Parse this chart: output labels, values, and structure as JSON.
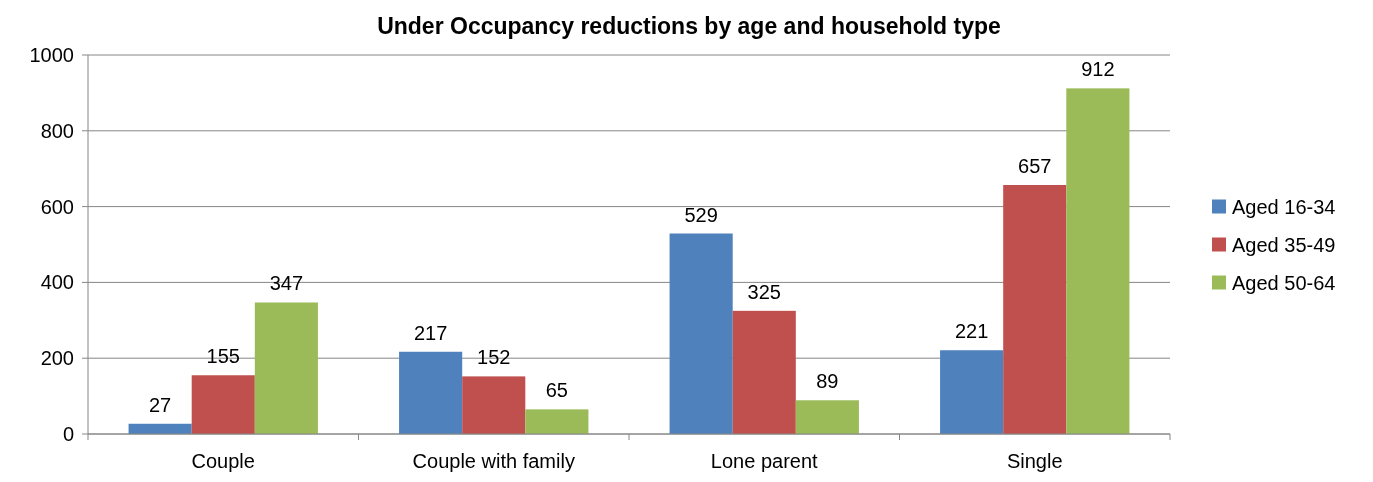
{
  "chart_data": {
    "type": "bar",
    "title": "Under Occupancy reductions by age and household type",
    "categories": [
      "Couple",
      "Couple with family",
      "Lone parent",
      "Single"
    ],
    "series": [
      {
        "name": "Aged 16-34",
        "color": "#4f81bd",
        "values": [
          27,
          217,
          529,
          221
        ]
      },
      {
        "name": "Aged 35-49",
        "color": "#c0504d",
        "values": [
          155,
          152,
          325,
          657
        ]
      },
      {
        "name": "Aged 50-64",
        "color": "#9bbb59",
        "values": [
          347,
          65,
          89,
          912
        ]
      }
    ],
    "ylim": [
      0,
      1000
    ],
    "yticks": [
      0,
      200,
      400,
      600,
      800,
      1000
    ],
    "grid": "y",
    "legend": "right",
    "data_labels": true
  }
}
